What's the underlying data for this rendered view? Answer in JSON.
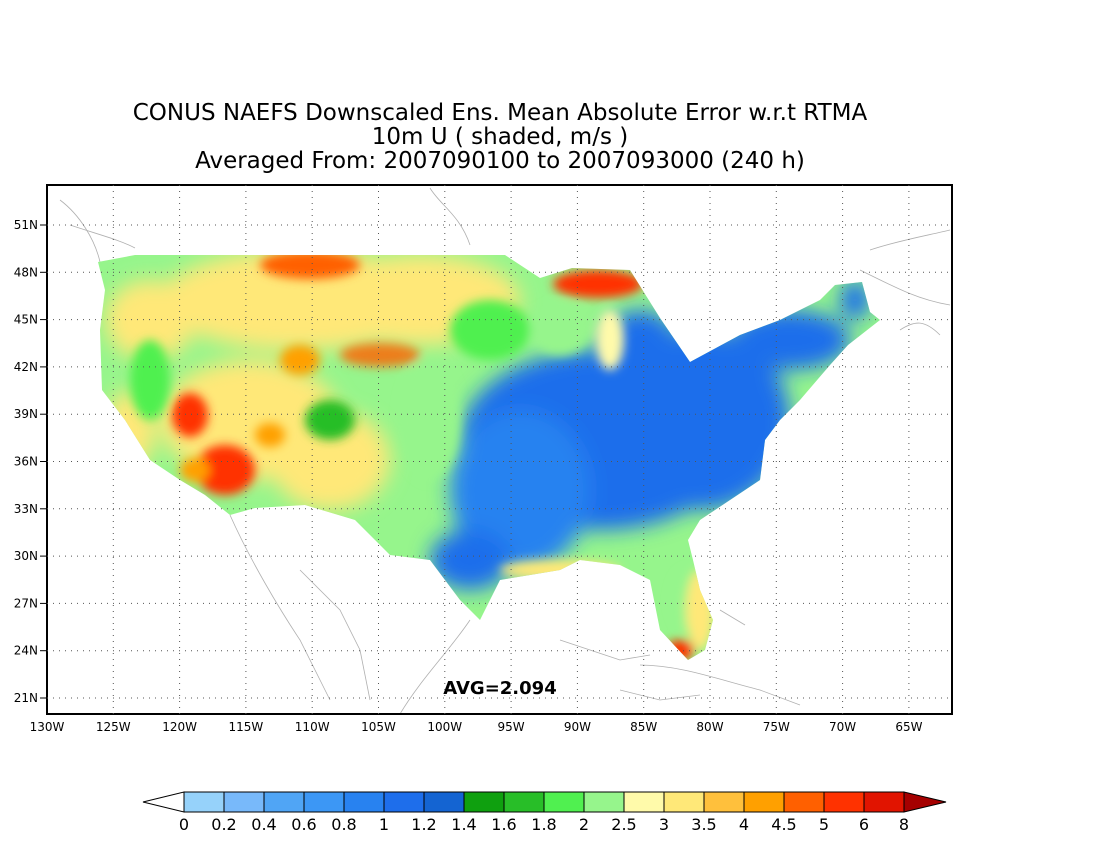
{
  "title": {
    "line1": "CONUS NAEFS Downscaled Ens. Mean Absolute Error w.r.t RTMA",
    "line2": "10m U ( shaded, m/s )",
    "line3": "Averaged From: 2007090100 to 2007093000 (240 h)"
  },
  "annotation": {
    "avg_label": "AVG=2.094"
  },
  "axes": {
    "lon_labels": [
      "130W",
      "125W",
      "120W",
      "115W",
      "110W",
      "105W",
      "100W",
      "95W",
      "90W",
      "85W",
      "80W",
      "75W",
      "70W",
      "65W"
    ],
    "lat_labels": [
      "51N",
      "48N",
      "45N",
      "42N",
      "39N",
      "36N",
      "33N",
      "30N",
      "27N",
      "24N",
      "21N"
    ],
    "grid": "dotted",
    "lon_range": [
      -130,
      -65
    ],
    "lat_range": [
      20,
      52
    ]
  },
  "colorbar": {
    "labels": [
      "0",
      "0.2",
      "0.4",
      "0.6",
      "0.8",
      "1",
      "1.2",
      "1.4",
      "1.6",
      "1.8",
      "2",
      "2.5",
      "3",
      "3.5",
      "4",
      "4.5",
      "5",
      "6",
      "8"
    ],
    "colors": [
      "#96d2fa",
      "#78b9fa",
      "#50a5f5",
      "#3c97f5",
      "#2882f0",
      "#1e6eeb",
      "#1464d2",
      "#0fa00f",
      "#28be28",
      "#50f050",
      "#96f58c",
      "#fffaaa",
      "#ffe878",
      "#ffc03c",
      "#ffa000",
      "#ff6000",
      "#ff3200",
      "#e11400",
      "#c00000"
    ],
    "low_end_color": "#ffffff",
    "high_end_color": "#a50000"
  },
  "legend_units": "m/s"
}
